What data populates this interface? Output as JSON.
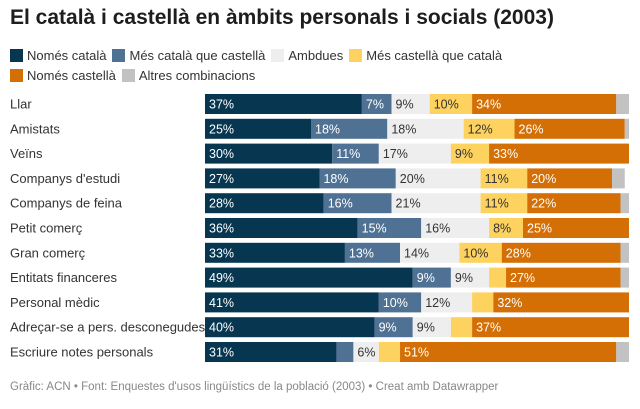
{
  "title": "El català i castellà en àmbits personals i socials (2003)",
  "footer": "Gràfic: ACN • Font: Enquestes d'usos lingüístics de la població (2003) • Creat amb Datawrapper",
  "chart_data": {
    "type": "bar",
    "stacked": true,
    "orientation": "horizontal",
    "title": "El català i castellà en àmbits personals i socials (2003)",
    "legend_placement": "top",
    "xlim": [
      0,
      100
    ],
    "categories": [
      "Llar",
      "Amistats",
      "Veïns",
      "Companys d'estudi",
      "Companys de feina",
      "Petit comerç",
      "Gran comerç",
      "Entitats financeres",
      "Personal mèdic",
      "Adreçar-se a pers. desconegudes",
      "Escriure notes personals"
    ],
    "series": [
      {
        "name": "Només català",
        "color": "#073651",
        "text": "#ffffff",
        "values": [
          37,
          25,
          30,
          27,
          28,
          36,
          33,
          49,
          41,
          40,
          31
        ],
        "labels": [
          "37%",
          "25%",
          "30%",
          "27%",
          "28%",
          "36%",
          "33%",
          "49%",
          "41%",
          "40%",
          "31%"
        ]
      },
      {
        "name": "Més català que castellà",
        "color": "#4f7294",
        "text": "#ffffff",
        "values": [
          7,
          18,
          11,
          18,
          16,
          15,
          13,
          9,
          10,
          9,
          4
        ],
        "labels": [
          "7%",
          "18%",
          "11%",
          "18%",
          "16%",
          "15%",
          "13%",
          "9%",
          "10%",
          "9%",
          ""
        ]
      },
      {
        "name": "Ambdues",
        "color": "#eeeeee",
        "text": "#333333",
        "values": [
          9,
          18,
          17,
          20,
          21,
          16,
          14,
          9,
          12,
          9,
          6
        ],
        "labels": [
          "9%",
          "18%",
          "17%",
          "20%",
          "21%",
          "16%",
          "14%",
          "9%",
          "12%",
          "9%",
          "6%"
        ]
      },
      {
        "name": "Més castellà que català",
        "color": "#fdd25f",
        "text": "#333333",
        "values": [
          10,
          12,
          9,
          11,
          11,
          8,
          10,
          4,
          5,
          5,
          5
        ],
        "labels": [
          "10%",
          "12%",
          "9%",
          "11%",
          "11%",
          "8%",
          "10%",
          "",
          "",
          "",
          ""
        ]
      },
      {
        "name": "Només castellà",
        "color": "#d46f05",
        "text": "#ffffff",
        "values": [
          34,
          26,
          33,
          20,
          22,
          25,
          28,
          27,
          32,
          37,
          51
        ],
        "labels": [
          "34%",
          "26%",
          "33%",
          "20%",
          "22%",
          "25%",
          "28%",
          "27%",
          "32%",
          "37%",
          "51%"
        ]
      },
      {
        "name": "Altres combinacions",
        "color": "#c2c2c2",
        "text": "#333333",
        "values": [
          3,
          1,
          0,
          3,
          2,
          0,
          2,
          2,
          0,
          0,
          3
        ],
        "labels": [
          "",
          "",
          "",
          "",
          "",
          "",
          "",
          "",
          "",
          "",
          ""
        ]
      }
    ]
  }
}
